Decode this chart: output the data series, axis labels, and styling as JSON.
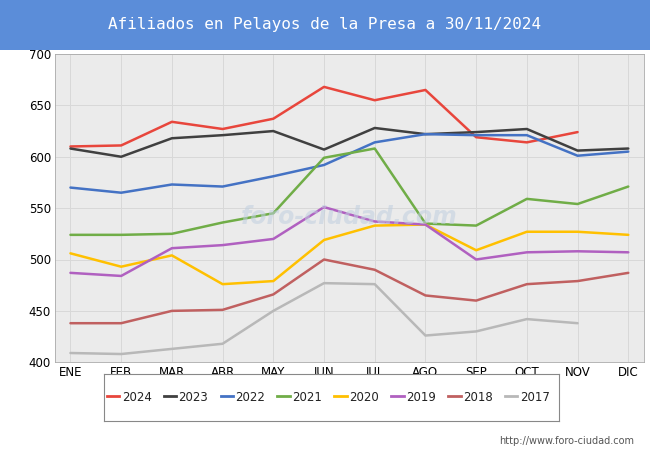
{
  "title": "Afiliados en Pelayos de la Presa a 30/11/2024",
  "title_color": "#ffffff",
  "title_bg_color": "#5b8dd9",
  "months": [
    "ENE",
    "FEB",
    "MAR",
    "ABR",
    "MAY",
    "JUN",
    "JUL",
    "AGO",
    "SEP",
    "OCT",
    "NOV",
    "DIC"
  ],
  "ylim": [
    400,
    700
  ],
  "yticks": [
    400,
    450,
    500,
    550,
    600,
    650,
    700
  ],
  "series": {
    "2024": {
      "color": "#e8463c",
      "data": [
        610,
        611,
        634,
        627,
        637,
        668,
        655,
        665,
        619,
        614,
        624,
        null
      ]
    },
    "2023": {
      "color": "#404040",
      "data": [
        608,
        600,
        618,
        621,
        625,
        607,
        628,
        622,
        624,
        627,
        606,
        608
      ]
    },
    "2022": {
      "color": "#4472c4",
      "data": [
        570,
        565,
        573,
        571,
        581,
        592,
        614,
        622,
        621,
        621,
        601,
        605
      ]
    },
    "2021": {
      "color": "#70ad47",
      "data": [
        524,
        524,
        525,
        536,
        545,
        599,
        608,
        535,
        533,
        559,
        554,
        571
      ]
    },
    "2020": {
      "color": "#ffc000",
      "data": [
        506,
        493,
        504,
        476,
        479,
        519,
        533,
        534,
        509,
        527,
        527,
        524
      ]
    },
    "2019": {
      "color": "#b060c0",
      "data": [
        487,
        484,
        511,
        514,
        520,
        551,
        537,
        534,
        500,
        507,
        508,
        507
      ]
    },
    "2018": {
      "color": "#c06060",
      "data": [
        438,
        438,
        450,
        451,
        466,
        500,
        490,
        465,
        460,
        476,
        479,
        487
      ]
    },
    "2017": {
      "color": "#b8b8b8",
      "data": [
        409,
        408,
        413,
        418,
        450,
        477,
        476,
        426,
        430,
        442,
        438,
        null
      ]
    }
  },
  "url": "http://www.foro-ciudad.com",
  "grid_color": "#d8d8d8",
  "plot_bg_color": "#ebebeb",
  "legend_years": [
    "2024",
    "2023",
    "2022",
    "2021",
    "2020",
    "2019",
    "2018",
    "2017"
  ]
}
